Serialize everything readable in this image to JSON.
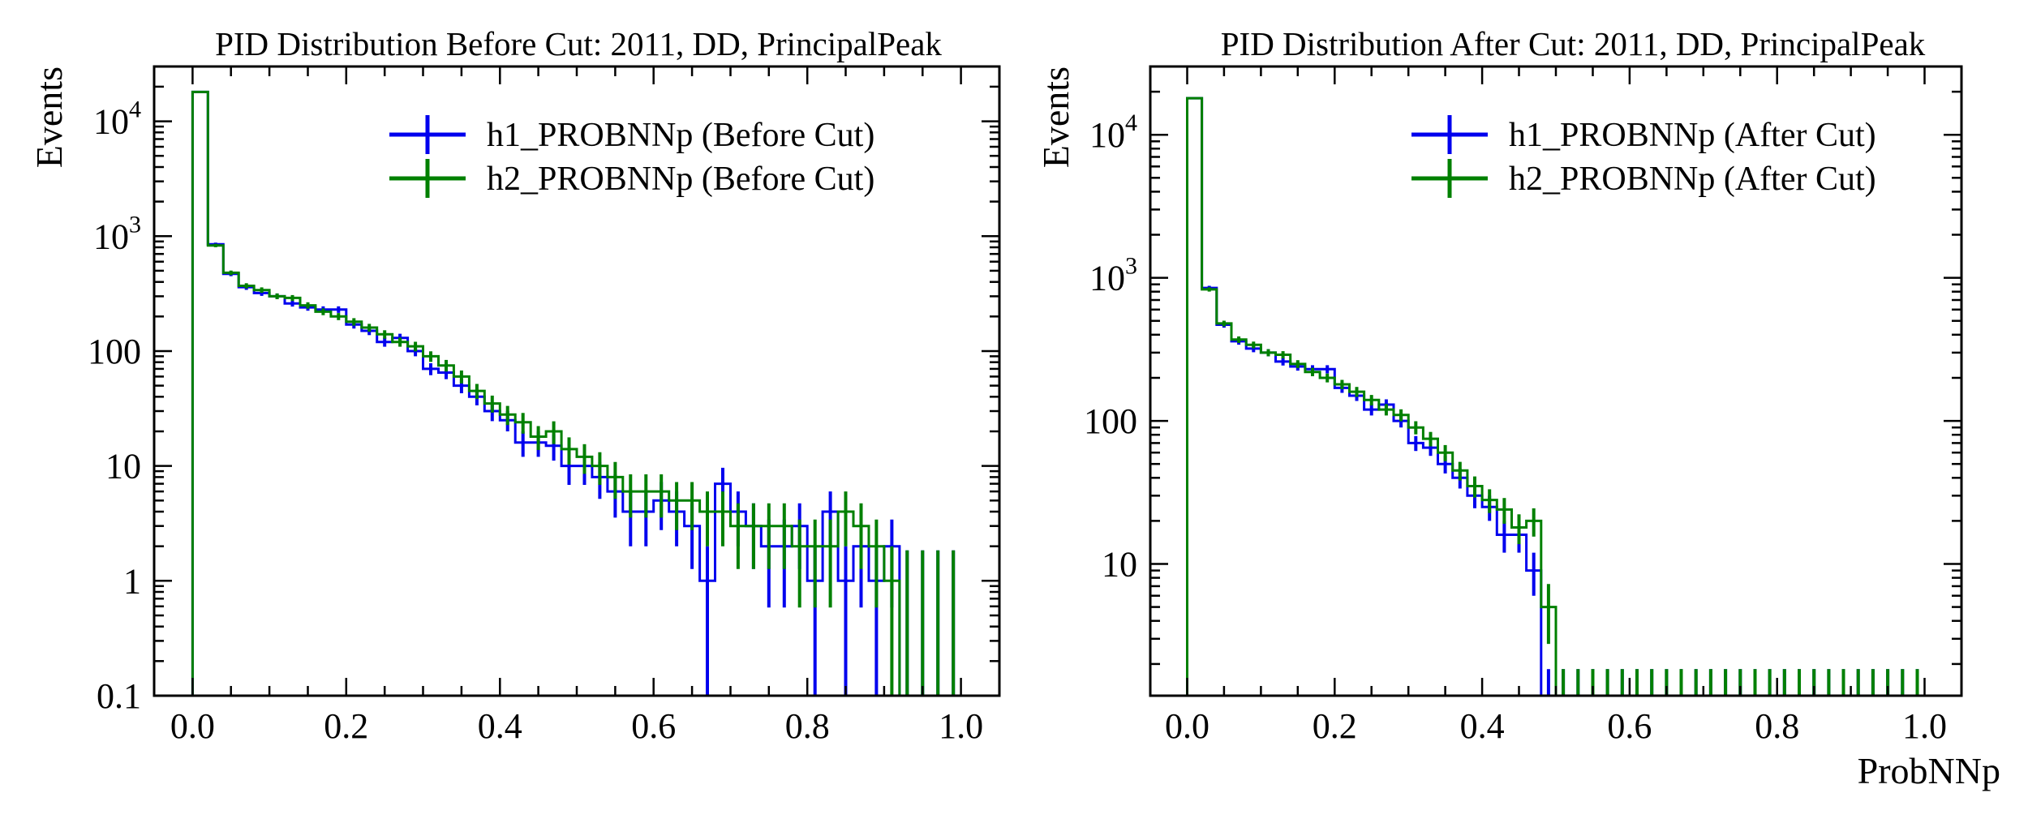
{
  "chart_data": [
    {
      "type": "histogram",
      "title": "PID Distribution Before Cut: 2011, DD, PrincipalPeak",
      "xlabel": "",
      "ylabel": "Events",
      "xlim": [
        -0.05,
        1.05
      ],
      "ylim": [
        0.1,
        30000
      ],
      "y_scale": "log",
      "x_ticks": [
        "0.0",
        "0.2",
        "0.4",
        "0.6",
        "0.8",
        "1.0"
      ],
      "y_tick_labels": [
        "0.1",
        "1",
        "10",
        "100",
        "10^3",
        "10^4"
      ],
      "legend_position": "top-right",
      "grid": false,
      "bin_width": 0.02,
      "series": [
        {
          "name": "h1_PROBNNp (Before Cut)",
          "color": "#0000ee",
          "values": [
            18000,
            850,
            470,
            360,
            320,
            300,
            260,
            240,
            230,
            230,
            170,
            150,
            120,
            130,
            100,
            70,
            65,
            50,
            40,
            30,
            25,
            16,
            16,
            15,
            10,
            10,
            8,
            6,
            4,
            4,
            5,
            4,
            3,
            1,
            7,
            4,
            3,
            2,
            2,
            3,
            1,
            4,
            1,
            2,
            1,
            2,
            0,
            0,
            0,
            0
          ]
        },
        {
          "name": "h2_PROBNNp (Before Cut)",
          "color": "#008000",
          "values": [
            18000,
            830,
            480,
            370,
            340,
            300,
            290,
            250,
            220,
            200,
            180,
            160,
            140,
            120,
            110,
            90,
            75,
            60,
            45,
            35,
            28,
            24,
            18,
            20,
            14,
            12,
            10,
            8,
            6,
            6,
            6,
            5,
            5,
            4,
            4,
            3,
            3,
            3,
            3,
            2,
            2,
            2,
            4,
            3,
            2,
            1,
            0,
            0,
            0,
            0
          ]
        }
      ]
    },
    {
      "type": "histogram",
      "title": "PID Distribution After Cut: 2011, DD, PrincipalPeak",
      "xlabel": "ProbNNp",
      "ylabel": "Events",
      "xlim": [
        -0.05,
        1.05
      ],
      "ylim": [
        1.2,
        30000
      ],
      "y_scale": "log",
      "x_ticks": [
        "0.0",
        "0.2",
        "0.4",
        "0.6",
        "0.8",
        "1.0"
      ],
      "y_tick_labels": [
        "10",
        "100",
        "10^3",
        "10^4"
      ],
      "legend_position": "top-right",
      "grid": false,
      "bin_width": 0.02,
      "series": [
        {
          "name": "h1_PROBNNp (After Cut)",
          "color": "#0000ee",
          "values": [
            18000,
            850,
            470,
            360,
            320,
            300,
            260,
            240,
            230,
            230,
            170,
            150,
            120,
            130,
            100,
            70,
            65,
            50,
            40,
            30,
            25,
            16,
            16,
            9,
            0,
            0,
            0,
            0,
            0,
            0,
            0,
            0,
            0,
            0,
            0,
            0,
            0,
            0,
            0,
            0,
            0,
            0,
            0,
            0,
            0,
            0,
            0,
            0,
            0,
            0
          ]
        },
        {
          "name": "h2_PROBNNp (After Cut)",
          "color": "#008000",
          "values": [
            18000,
            830,
            480,
            370,
            340,
            300,
            290,
            250,
            220,
            200,
            180,
            160,
            140,
            120,
            110,
            90,
            75,
            60,
            45,
            35,
            28,
            24,
            18,
            20,
            5,
            0,
            0,
            0,
            0,
            0,
            0,
            0,
            0,
            0,
            0,
            0,
            0,
            0,
            0,
            0,
            0,
            0,
            0,
            0,
            0,
            0,
            0,
            0,
            0,
            0
          ]
        }
      ]
    }
  ]
}
